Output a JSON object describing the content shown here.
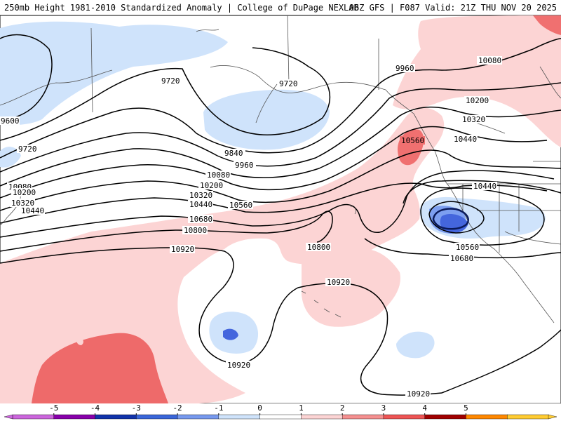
{
  "header": {
    "title": "250mb Height 1981-2010 Standardized Anomaly | College of DuPage NEXLAB",
    "run_info": "06Z GFS | F087 Valid: 21Z THU NOV 20 2025"
  },
  "contours": [
    {
      "id": "c9600",
      "label": "9600"
    },
    {
      "id": "c9720a",
      "label": "9720"
    },
    {
      "id": "c9720b",
      "label": "9720"
    },
    {
      "id": "c9720c",
      "label": "9720"
    },
    {
      "id": "c9840",
      "label": "9840"
    },
    {
      "id": "c9960a",
      "label": "9960"
    },
    {
      "id": "c9960b",
      "label": "9960"
    },
    {
      "id": "c10080a",
      "label": "10080"
    },
    {
      "id": "c10080b",
      "label": "10080"
    },
    {
      "id": "c10080c",
      "label": "10080"
    },
    {
      "id": "c10200a",
      "label": "10200"
    },
    {
      "id": "c10200b",
      "label": "10200"
    },
    {
      "id": "c10200c",
      "label": "10200"
    },
    {
      "id": "c10320a",
      "label": "10320"
    },
    {
      "id": "c10320b",
      "label": "10320"
    },
    {
      "id": "c10320c",
      "label": "10320"
    },
    {
      "id": "c10440a",
      "label": "10440"
    },
    {
      "id": "c10440b",
      "label": "10440"
    },
    {
      "id": "c10440c",
      "label": "10440"
    },
    {
      "id": "c10440d",
      "label": "10440"
    },
    {
      "id": "c10560a",
      "label": "10560"
    },
    {
      "id": "c10560b",
      "label": "10560"
    },
    {
      "id": "c10560c",
      "label": "10560"
    },
    {
      "id": "c10680a",
      "label": "10680"
    },
    {
      "id": "c10680b",
      "label": "10680"
    },
    {
      "id": "c10800a",
      "label": "10800"
    },
    {
      "id": "c10800b",
      "label": "10800"
    },
    {
      "id": "c10920a",
      "label": "10920"
    },
    {
      "id": "c10920b",
      "label": "10920"
    },
    {
      "id": "c10920c",
      "label": "10920"
    },
    {
      "id": "c10920d",
      "label": "10920"
    }
  ],
  "colorbar": {
    "ticks": [
      "-5",
      "-4",
      "-3",
      "-2",
      "-1",
      "0",
      "1",
      "2",
      "3",
      "4",
      "5"
    ],
    "colors": [
      "#cc66dd",
      "#8800aa",
      "#1133aa",
      "#3a66d9",
      "#7799ee",
      "#cfe3fb",
      "#ffffff",
      "#fcd4d4",
      "#f59090",
      "#ee5555",
      "#a00000",
      "#ff8800",
      "#ffcc33"
    ]
  },
  "anomaly_colors": {
    "light_blue": "#cfe3fb",
    "mid_blue": "#7d9ff0",
    "dark_blue": "#4466dd",
    "light_red": "#fcd4d4",
    "mid_red": "#f07070",
    "dark_red": "#ee6a6a"
  }
}
